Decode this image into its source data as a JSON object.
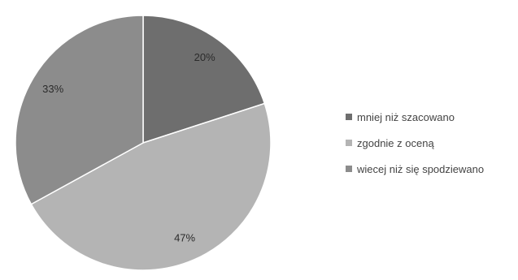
{
  "chart_data": {
    "type": "pie",
    "categories": [
      "mniej niż szacowano",
      "zgodnie z oceną",
      "wiecej niż się spodziewano"
    ],
    "values": [
      20,
      47,
      33
    ],
    "data_labels": [
      "20%",
      "47%",
      "33%"
    ],
    "colors": [
      "#6e6e6e",
      "#b4b4b4",
      "#8c8c8c"
    ],
    "legend_position": "right",
    "start_angle": "top (12 o'clock), clockwise"
  }
}
